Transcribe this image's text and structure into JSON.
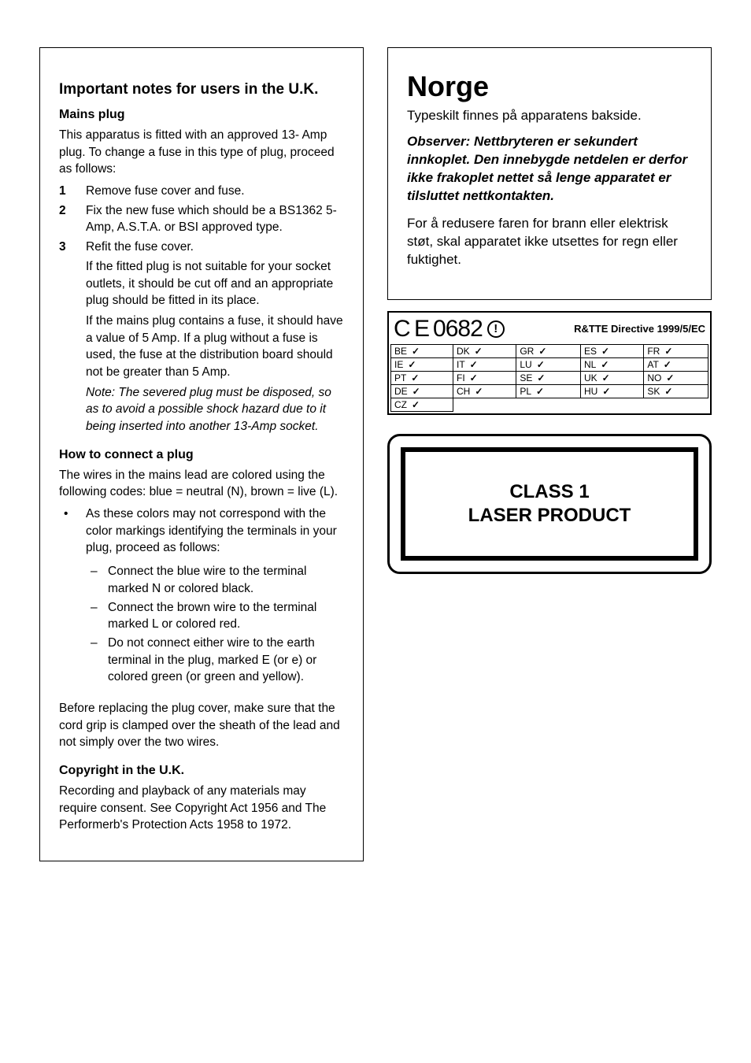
{
  "left": {
    "title": "Important notes for users in the U.K.",
    "mains": {
      "head": "Mains plug",
      "intro": "This apparatus is fitted with an approved 13- Amp plug. To change a fuse in this type of plug, proceed as follows:",
      "steps": [
        "Remove fuse cover and fuse.",
        "Fix the new fuse which should be a BS1362 5-Amp, A.S.T.A. or BSI approved type.",
        "Refit the fuse cover."
      ],
      "after1": "If the fitted plug is not suitable for your socket outlets, it should be cut off and an appropriate plug should be fitted in its place.",
      "after2": "If the mains plug contains a fuse, it should have a value of 5 Amp. If a plug without a fuse is used, the fuse at the distribution board should not be greater than 5 Amp.",
      "note": "Note: The severed plug must be disposed, so as to avoid a possible shock hazard due to it being inserted into another 13-Amp socket."
    },
    "connect": {
      "head": "How to connect a plug",
      "intro": "The wires in the mains lead are colored using the following codes: blue = neutral (N), brown = live (L).",
      "bullet": "As these colors may not correspond with the color markings identifying the terminals in your plug, proceed as follows:",
      "dash1": "Connect the blue wire to the terminal marked N or colored black.",
      "dash2": "Connect the brown wire to the terminal marked L or colored red.",
      "dash3": "Do not connect either wire to the earth terminal in the plug, marked E (or e) or colored green (or green and yellow).",
      "after": "Before replacing the plug cover, make sure that the cord grip is clamped over the sheath of the lead and not simply over the two wires."
    },
    "copyright": {
      "head": "Copyright in the U.K.",
      "body": "Recording and playback of any materials may require consent. See Copyright Act 1956 and The Performerb's Protection Acts 1958 to 1972."
    }
  },
  "right": {
    "norge": {
      "title": "Norge",
      "sub": "Typeskilt finnes på apparatens bakside.",
      "warn": "Observer: Nettbryteren er sekundert innkoplet. Den innebygde netdelen er derfor ikke frakoplet nettet så lenge apparatet er tilsluttet nettkontakten.",
      "body": "For å redusere faren for brann eller elektrisk støt, skal apparatet ikke utsettes for regn eller fuktighet."
    },
    "ce": {
      "mark": "C E",
      "num": "0682",
      "excl": "!",
      "directive": "R&TTE Directive  1999/5/EC",
      "rows": [
        [
          "BE",
          "DK",
          "GR",
          "ES",
          "FR"
        ],
        [
          "IE",
          "IT",
          "LU",
          "NL",
          "AT"
        ],
        [
          "PT",
          "FI",
          "SE",
          "UK",
          "NO"
        ],
        [
          "DE",
          "CH",
          "PL",
          "HU",
          "SK"
        ],
        [
          "CZ",
          "",
          "",
          "",
          ""
        ]
      ],
      "check": "✓"
    },
    "laser": {
      "line1": "CLASS 1",
      "line2": "LASER PRODUCT"
    }
  }
}
